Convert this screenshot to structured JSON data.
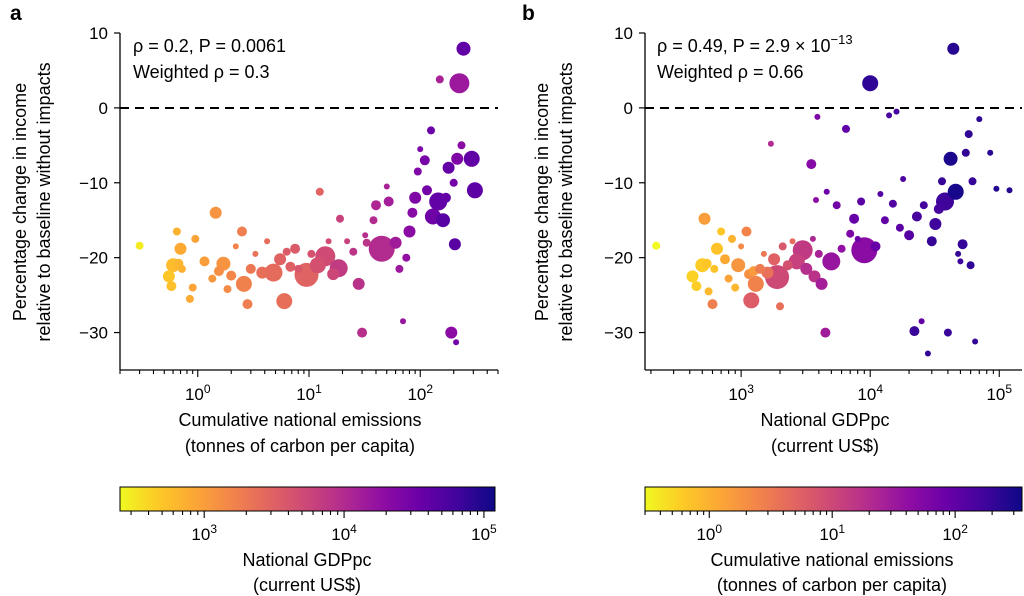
{
  "panels": {
    "a": {
      "letter": "a",
      "stat_line1": "ρ = 0.2, P = 0.0061",
      "stat_line2": "Weighted ρ = 0.3"
    },
    "b": {
      "letter": "b",
      "stat_line1": "ρ = 0.49, P = 2.9 × 10−13",
      "stat_line2": "Weighted ρ = 0.66"
    }
  },
  "colorbars": {
    "left": {
      "label_line1": "National GDPpc",
      "label_line2": "(current US$)"
    },
    "right": {
      "label_line1": "Cumulative national emissions",
      "label_line2": "(tonnes of carbon per capita)"
    }
  },
  "colormap": "plasma",
  "chart_data": [
    {
      "type": "scatter",
      "panel": "a",
      "xlabel": "Cumulative national emissions\n(tonnes of carbon per capita)",
      "ylabel": "Percentage change in income\nrelative to baseline without impacts",
      "xscale": "log",
      "xlim": [
        0.2,
        500
      ],
      "ylim": [
        -35,
        10
      ],
      "xticks": [
        {
          "value": 1,
          "label": "10^0"
        },
        {
          "value": 10,
          "label": "10^1"
        },
        {
          "value": 100,
          "label": "10^2"
        }
      ],
      "yticks": [
        10,
        0,
        -10,
        -20,
        -30
      ],
      "reference_line": {
        "y": 0,
        "style": "dashed"
      },
      "color_by": "National GDPpc (current US$)",
      "points": [
        {
          "x": 0.3,
          "y": -18.4,
          "c": 300,
          "s": 4
        },
        {
          "x": 0.55,
          "y": -22.5,
          "c": 500,
          "s": 6
        },
        {
          "x": 0.58,
          "y": -23.8,
          "c": 550,
          "s": 5
        },
        {
          "x": 0.6,
          "y": -21.0,
          "c": 600,
          "s": 7
        },
        {
          "x": 0.65,
          "y": -16.5,
          "c": 700,
          "s": 4
        },
        {
          "x": 0.67,
          "y": -20.8,
          "c": 650,
          "s": 5
        },
        {
          "x": 0.7,
          "y": -18.8,
          "c": 800,
          "s": 6
        },
        {
          "x": 0.72,
          "y": -21.5,
          "c": 700,
          "s": 4
        },
        {
          "x": 0.85,
          "y": -25.5,
          "c": 800,
          "s": 4
        },
        {
          "x": 0.9,
          "y": -24.0,
          "c": 900,
          "s": 4
        },
        {
          "x": 0.95,
          "y": -17.5,
          "c": 900,
          "s": 4
        },
        {
          "x": 1.15,
          "y": -20.5,
          "c": 1000,
          "s": 5
        },
        {
          "x": 1.35,
          "y": -22.8,
          "c": 1100,
          "s": 4
        },
        {
          "x": 1.45,
          "y": -14.0,
          "c": 1200,
          "s": 6
        },
        {
          "x": 1.55,
          "y": -21.8,
          "c": 1300,
          "s": 5
        },
        {
          "x": 1.7,
          "y": -20.8,
          "c": 1200,
          "s": 7
        },
        {
          "x": 1.85,
          "y": -24.2,
          "c": 1400,
          "s": 4
        },
        {
          "x": 2.0,
          "y": -22.4,
          "c": 1500,
          "s": 5
        },
        {
          "x": 2.2,
          "y": -18.5,
          "c": 1600,
          "s": 3
        },
        {
          "x": 2.5,
          "y": -16.5,
          "c": 1800,
          "s": 5
        },
        {
          "x": 2.6,
          "y": -23.5,
          "c": 1700,
          "s": 8
        },
        {
          "x": 2.8,
          "y": -26.2,
          "c": 1800,
          "s": 5
        },
        {
          "x": 3.0,
          "y": -21.5,
          "c": 2000,
          "s": 5
        },
        {
          "x": 3.3,
          "y": -19.5,
          "c": 2200,
          "s": 3
        },
        {
          "x": 3.8,
          "y": -22.0,
          "c": 2400,
          "s": 6
        },
        {
          "x": 4.2,
          "y": -17.8,
          "c": 2500,
          "s": 3
        },
        {
          "x": 4.8,
          "y": -22.0,
          "c": 2600,
          "s": 9
        },
        {
          "x": 5.5,
          "y": -20.2,
          "c": 3000,
          "s": 6
        },
        {
          "x": 6.0,
          "y": -25.8,
          "c": 2400,
          "s": 8
        },
        {
          "x": 6.3,
          "y": -19.2,
          "c": 3500,
          "s": 4
        },
        {
          "x": 6.8,
          "y": -21.2,
          "c": 3200,
          "s": 5
        },
        {
          "x": 7.5,
          "y": -18.8,
          "c": 3600,
          "s": 5
        },
        {
          "x": 8.0,
          "y": -21.5,
          "c": 3800,
          "s": 4
        },
        {
          "x": 9.5,
          "y": -22.3,
          "c": 3000,
          "s": 12
        },
        {
          "x": 10.5,
          "y": -19.5,
          "c": 4200,
          "s": 4
        },
        {
          "x": 12.0,
          "y": -21.0,
          "c": 4500,
          "s": 8
        },
        {
          "x": 12.5,
          "y": -11.2,
          "c": 3000,
          "s": 4
        },
        {
          "x": 14.0,
          "y": -19.8,
          "c": 5000,
          "s": 10
        },
        {
          "x": 15.0,
          "y": -17.8,
          "c": 4800,
          "s": 3
        },
        {
          "x": 16.5,
          "y": -22.2,
          "c": 5500,
          "s": 6
        },
        {
          "x": 18.5,
          "y": -21.4,
          "c": 7000,
          "s": 9
        },
        {
          "x": 19.0,
          "y": -14.8,
          "c": 6000,
          "s": 4
        },
        {
          "x": 22.0,
          "y": -17.8,
          "c": 6000,
          "s": 3
        },
        {
          "x": 25.0,
          "y": -19.2,
          "c": 8000,
          "s": 4
        },
        {
          "x": 28.0,
          "y": -23.5,
          "c": 8500,
          "s": 6
        },
        {
          "x": 30.0,
          "y": -30.0,
          "c": 9000,
          "s": 5
        },
        {
          "x": 32.0,
          "y": -17.0,
          "c": 9000,
          "s": 3
        },
        {
          "x": 33.0,
          "y": -18.0,
          "c": 8000,
          "s": 4
        },
        {
          "x": 38.0,
          "y": -15.0,
          "c": 10000,
          "s": 4
        },
        {
          "x": 40.0,
          "y": -13.0,
          "c": 11000,
          "s": 5
        },
        {
          "x": 45.0,
          "y": -18.8,
          "c": 10000,
          "s": 13
        },
        {
          "x": 50.0,
          "y": -10.5,
          "c": 12000,
          "s": 3
        },
        {
          "x": 52.0,
          "y": -12.5,
          "c": 13000,
          "s": 5
        },
        {
          "x": 60.0,
          "y": -18.0,
          "c": 14000,
          "s": 6
        },
        {
          "x": 65.0,
          "y": -21.5,
          "c": 15000,
          "s": 4
        },
        {
          "x": 70.0,
          "y": -28.5,
          "c": 16000,
          "s": 3
        },
        {
          "x": 75.0,
          "y": -20.0,
          "c": 18000,
          "s": 4
        },
        {
          "x": 80.0,
          "y": -16.5,
          "c": 20000,
          "s": 6
        },
        {
          "x": 85.0,
          "y": -14.0,
          "c": 22000,
          "s": 5
        },
        {
          "x": 90.0,
          "y": -12.0,
          "c": 25000,
          "s": 6
        },
        {
          "x": 95.0,
          "y": -8.5,
          "c": 24000,
          "s": 4
        },
        {
          "x": 100.0,
          "y": -5.5,
          "c": 26000,
          "s": 3
        },
        {
          "x": 110.0,
          "y": -7.0,
          "c": 28000,
          "s": 5
        },
        {
          "x": 115.0,
          "y": -11.0,
          "c": 30000,
          "s": 5
        },
        {
          "x": 125.0,
          "y": -3.0,
          "c": 35000,
          "s": 4
        },
        {
          "x": 130.0,
          "y": -14.5,
          "c": 32000,
          "s": 8
        },
        {
          "x": 145.0,
          "y": -12.5,
          "c": 40000,
          "s": 9
        },
        {
          "x": 150.0,
          "y": 3.8,
          "c": 12000,
          "s": 4
        },
        {
          "x": 160.0,
          "y": -15.0,
          "c": 45000,
          "s": 7
        },
        {
          "x": 170.0,
          "y": -12.0,
          "c": 40000,
          "s": 5
        },
        {
          "x": 180.0,
          "y": -8.0,
          "c": 38000,
          "s": 6
        },
        {
          "x": 190.0,
          "y": -30.0,
          "c": 20000,
          "s": 6
        },
        {
          "x": 200.0,
          "y": -10.0,
          "c": 30000,
          "s": 4
        },
        {
          "x": 205.0,
          "y": -18.2,
          "c": 45000,
          "s": 6
        },
        {
          "x": 210.0,
          "y": -31.3,
          "c": 30000,
          "s": 3
        },
        {
          "x": 215.0,
          "y": -6.8,
          "c": 25000,
          "s": 6
        },
        {
          "x": 225.0,
          "y": 3.3,
          "c": 15000,
          "s": 10
        },
        {
          "x": 235.0,
          "y": -5.0,
          "c": 20000,
          "s": 4
        },
        {
          "x": 245.0,
          "y": 7.9,
          "c": 40000,
          "s": 7
        },
        {
          "x": 290.0,
          "y": -6.8,
          "c": 40000,
          "s": 8
        },
        {
          "x": 310.0,
          "y": -11.0,
          "c": 42000,
          "s": 8
        }
      ]
    },
    {
      "type": "scatter",
      "panel": "b",
      "xlabel": "National GDPpc\n(current US$)",
      "ylabel": "Percentage change in income\nrelative to baseline without impacts",
      "xscale": "log",
      "xlim": [
        180,
        150000
      ],
      "ylim": [
        -35,
        10
      ],
      "xticks": [
        {
          "value": 1000,
          "label": "10^3"
        },
        {
          "value": 10000,
          "label": "10^4"
        },
        {
          "value": 100000,
          "label": "10^5"
        }
      ],
      "yticks": [
        10,
        0,
        -10,
        -20,
        -30
      ],
      "reference_line": {
        "y": 0,
        "style": "dashed"
      },
      "color_by": "Cumulative national emissions (tonnes of carbon per capita)",
      "points": [
        {
          "x": 220,
          "y": -18.4,
          "c": 0.3,
          "s": 4
        },
        {
          "x": 420,
          "y": -22.5,
          "c": 0.55,
          "s": 6
        },
        {
          "x": 450,
          "y": -23.8,
          "c": 0.58,
          "s": 5
        },
        {
          "x": 500,
          "y": -21.0,
          "c": 0.6,
          "s": 7
        },
        {
          "x": 520,
          "y": -14.8,
          "c": 1.45,
          "s": 6
        },
        {
          "x": 540,
          "y": -20.8,
          "c": 0.67,
          "s": 5
        },
        {
          "x": 560,
          "y": -24.5,
          "c": 0.85,
          "s": 4
        },
        {
          "x": 600,
          "y": -26.2,
          "c": 2.8,
          "s": 5
        },
        {
          "x": 620,
          "y": -21.5,
          "c": 0.72,
          "s": 4
        },
        {
          "x": 650,
          "y": -18.8,
          "c": 0.7,
          "s": 6
        },
        {
          "x": 700,
          "y": -16.5,
          "c": 0.65,
          "s": 4
        },
        {
          "x": 750,
          "y": -20.2,
          "c": 1.15,
          "s": 5
        },
        {
          "x": 800,
          "y": -22.8,
          "c": 1.35,
          "s": 4
        },
        {
          "x": 850,
          "y": -17.5,
          "c": 0.95,
          "s": 4
        },
        {
          "x": 900,
          "y": -24.0,
          "c": 0.9,
          "s": 4
        },
        {
          "x": 950,
          "y": -21.0,
          "c": 1.7,
          "s": 7
        },
        {
          "x": 1000,
          "y": -18.5,
          "c": 2.2,
          "s": 3
        },
        {
          "x": 1100,
          "y": -16.5,
          "c": 2.5,
          "s": 5
        },
        {
          "x": 1150,
          "y": -22.2,
          "c": 2.0,
          "s": 5
        },
        {
          "x": 1200,
          "y": -25.7,
          "c": 6.0,
          "s": 8
        },
        {
          "x": 1250,
          "y": -21.8,
          "c": 1.55,
          "s": 5
        },
        {
          "x": 1300,
          "y": -23.5,
          "c": 2.6,
          "s": 8
        },
        {
          "x": 1400,
          "y": -21.5,
          "c": 3.0,
          "s": 5
        },
        {
          "x": 1500,
          "y": -19.5,
          "c": 3.3,
          "s": 3
        },
        {
          "x": 1600,
          "y": -22.0,
          "c": 3.8,
          "s": 6
        },
        {
          "x": 1700,
          "y": -4.8,
          "c": 20,
          "s": 3
        },
        {
          "x": 1800,
          "y": -20.2,
          "c": 5.5,
          "s": 6
        },
        {
          "x": 1900,
          "y": -22.6,
          "c": 9.5,
          "s": 12
        },
        {
          "x": 2000,
          "y": -26.5,
          "c": 4.0,
          "s": 4
        },
        {
          "x": 2100,
          "y": -18.5,
          "c": 7.0,
          "s": 4
        },
        {
          "x": 2300,
          "y": -21.0,
          "c": 8.0,
          "s": 5
        },
        {
          "x": 2500,
          "y": -17.8,
          "c": 4.2,
          "s": 3
        },
        {
          "x": 2700,
          "y": -20.5,
          "c": 12.0,
          "s": 8
        },
        {
          "x": 3000,
          "y": -19.0,
          "c": 14.0,
          "s": 10
        },
        {
          "x": 3200,
          "y": -21.5,
          "c": 18.5,
          "s": 6
        },
        {
          "x": 3500,
          "y": -7.5,
          "c": 50,
          "s": 5
        },
        {
          "x": 3600,
          "y": -17.5,
          "c": 22,
          "s": 3
        },
        {
          "x": 3700,
          "y": -22.5,
          "c": 16.5,
          "s": 6
        },
        {
          "x": 3800,
          "y": -12.3,
          "c": 45,
          "s": 3
        },
        {
          "x": 3900,
          "y": -1.2,
          "c": 60,
          "s": 3
        },
        {
          "x": 4000,
          "y": -19.5,
          "c": 25,
          "s": 4
        },
        {
          "x": 4200,
          "y": -23.5,
          "c": 28,
          "s": 6
        },
        {
          "x": 4500,
          "y": -30.0,
          "c": 30,
          "s": 5
        },
        {
          "x": 4600,
          "y": -11.2,
          "c": 80,
          "s": 3
        },
        {
          "x": 5000,
          "y": -20.5,
          "c": 35,
          "s": 9
        },
        {
          "x": 5500,
          "y": -13.0,
          "c": 70,
          "s": 4
        },
        {
          "x": 6000,
          "y": -18.8,
          "c": 40,
          "s": 4
        },
        {
          "x": 6500,
          "y": -2.8,
          "c": 100,
          "s": 4
        },
        {
          "x": 7000,
          "y": -16.8,
          "c": 60,
          "s": 4
        },
        {
          "x": 7500,
          "y": -14.8,
          "c": 90,
          "s": 5
        },
        {
          "x": 8000,
          "y": -17.5,
          "c": 80,
          "s": 3
        },
        {
          "x": 8500,
          "y": -12.5,
          "c": 110,
          "s": 4
        },
        {
          "x": 9000,
          "y": -19.0,
          "c": 45,
          "s": 13
        },
        {
          "x": 10000,
          "y": 3.3,
          "c": 220,
          "s": 8
        },
        {
          "x": 11000,
          "y": -18.5,
          "c": 90,
          "s": 5
        },
        {
          "x": 12000,
          "y": -11.5,
          "c": 120,
          "s": 3
        },
        {
          "x": 13000,
          "y": -15.0,
          "c": 100,
          "s": 4
        },
        {
          "x": 14000,
          "y": -1.0,
          "c": 150,
          "s": 3
        },
        {
          "x": 15000,
          "y": -12.8,
          "c": 130,
          "s": 4
        },
        {
          "x": 16000,
          "y": -0.5,
          "c": 160,
          "s": 3
        },
        {
          "x": 17000,
          "y": -16.0,
          "c": 110,
          "s": 4
        },
        {
          "x": 18000,
          "y": -9.5,
          "c": 140,
          "s": 3
        },
        {
          "x": 20000,
          "y": -17.0,
          "c": 120,
          "s": 5
        },
        {
          "x": 22000,
          "y": -29.8,
          "c": 190,
          "s": 5
        },
        {
          "x": 23000,
          "y": -14.5,
          "c": 150,
          "s": 5
        },
        {
          "x": 25000,
          "y": -28.5,
          "c": 100,
          "s": 3
        },
        {
          "x": 26000,
          "y": -13.0,
          "c": 160,
          "s": 4
        },
        {
          "x": 28000,
          "y": -32.8,
          "c": 210,
          "s": 3
        },
        {
          "x": 30000,
          "y": -17.8,
          "c": 200,
          "s": 5
        },
        {
          "x": 32000,
          "y": -15.5,
          "c": 180,
          "s": 6
        },
        {
          "x": 34000,
          "y": -13.5,
          "c": 160,
          "s": 5
        },
        {
          "x": 36000,
          "y": -9.8,
          "c": 200,
          "s": 4
        },
        {
          "x": 38000,
          "y": -12.5,
          "c": 180,
          "s": 9
        },
        {
          "x": 40000,
          "y": -30.0,
          "c": 190,
          "s": 4
        },
        {
          "x": 42000,
          "y": -6.8,
          "c": 290,
          "s": 7
        },
        {
          "x": 44000,
          "y": 7.9,
          "c": 245,
          "s": 6
        },
        {
          "x": 46000,
          "y": -11.2,
          "c": 310,
          "s": 8
        },
        {
          "x": 48000,
          "y": -19.5,
          "c": 200,
          "s": 3
        },
        {
          "x": 50000,
          "y": -20.5,
          "c": 180,
          "s": 3
        },
        {
          "x": 52000,
          "y": -18.2,
          "c": 205,
          "s": 5
        },
        {
          "x": 55000,
          "y": -6.0,
          "c": 210,
          "s": 4
        },
        {
          "x": 58000,
          "y": -3.5,
          "c": 220,
          "s": 4
        },
        {
          "x": 60000,
          "y": -21.0,
          "c": 215,
          "s": 4
        },
        {
          "x": 62000,
          "y": -9.8,
          "c": 200,
          "s": 4
        },
        {
          "x": 65000,
          "y": -31.2,
          "c": 210,
          "s": 3
        },
        {
          "x": 70000,
          "y": -1.5,
          "c": 230,
          "s": 3
        },
        {
          "x": 85000,
          "y": -6.0,
          "c": 240,
          "s": 3
        },
        {
          "x": 95000,
          "y": -10.8,
          "c": 260,
          "s": 3
        },
        {
          "x": 120000,
          "y": -11.0,
          "c": 250,
          "s": 3
        }
      ]
    }
  ]
}
